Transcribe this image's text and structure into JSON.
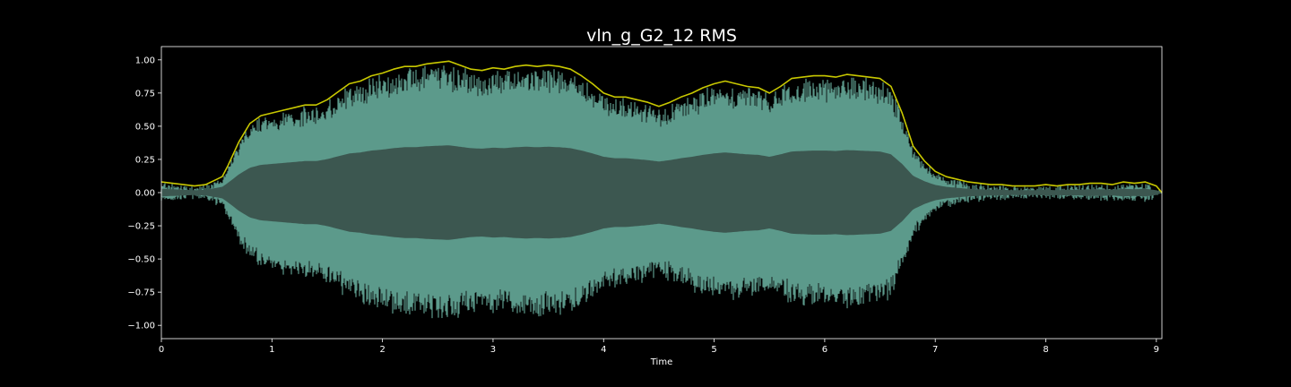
{
  "chart_data": {
    "type": "line",
    "title": "vln_g_G2_12 RMS",
    "xlabel": "Time",
    "ylabel": "",
    "xlim": [
      0,
      9.05
    ],
    "ylim": [
      -1.1,
      1.1
    ],
    "x_ticks": [
      0,
      1,
      2,
      3,
      4,
      5,
      6,
      7,
      8,
      9
    ],
    "x_tick_labels": [
      "0",
      "1",
      "2",
      "3",
      "4",
      "5",
      "6",
      "7",
      "8",
      "9"
    ],
    "y_ticks": [
      1.0,
      0.75,
      0.5,
      0.25,
      0.0,
      -0.25,
      -0.5,
      -0.75,
      -1.0
    ],
    "y_tick_labels": [
      "1.00",
      "0.75",
      "0.50",
      "0.25",
      "0.00",
      "−0.25",
      "−0.50",
      "−0.75",
      "−1.00"
    ],
    "grid": false,
    "colors": {
      "background": "#000000",
      "axes_edge": "#ffffff",
      "waveform_peak": "#5c9a8b",
      "waveform_body": "#3c5750",
      "rms_line": "#c8c800"
    },
    "series": [
      {
        "x": [
          0.0,
          0.1,
          0.2,
          0.3,
          0.4,
          0.5,
          0.55,
          0.6,
          0.7,
          0.8,
          0.9,
          1.0,
          1.1,
          1.2,
          1.3,
          1.4,
          1.5,
          1.6,
          1.7,
          1.8,
          1.9,
          2.0,
          2.1,
          2.2,
          2.3,
          2.4,
          2.5,
          2.6,
          2.7,
          2.8,
          2.9,
          3.0,
          3.1,
          3.2,
          3.3,
          3.4,
          3.5,
          3.6,
          3.7,
          3.8,
          3.9,
          4.0,
          4.1,
          4.2,
          4.3,
          4.4,
          4.5,
          4.6,
          4.7,
          4.8,
          4.9,
          5.0,
          5.1,
          5.2,
          5.3,
          5.4,
          5.5,
          5.6,
          5.7,
          5.8,
          5.9,
          6.0,
          6.1,
          6.2,
          6.3,
          6.4,
          6.5,
          6.6,
          6.7,
          6.8,
          6.9,
          7.0,
          7.1,
          7.2,
          7.3,
          7.4,
          7.5,
          7.6,
          7.7,
          7.8,
          7.9,
          8.0,
          8.1,
          8.2,
          8.3,
          8.4,
          8.5,
          8.6,
          8.7,
          8.8,
          8.9,
          9.0,
          9.05
        ],
        "y": [
          0.08,
          0.07,
          0.06,
          0.05,
          0.06,
          0.1,
          0.12,
          0.2,
          0.38,
          0.52,
          0.58,
          0.6,
          0.62,
          0.64,
          0.66,
          0.66,
          0.7,
          0.76,
          0.82,
          0.84,
          0.88,
          0.9,
          0.93,
          0.95,
          0.95,
          0.97,
          0.98,
          0.99,
          0.96,
          0.93,
          0.92,
          0.94,
          0.93,
          0.95,
          0.96,
          0.95,
          0.96,
          0.95,
          0.93,
          0.88,
          0.82,
          0.75,
          0.72,
          0.72,
          0.7,
          0.68,
          0.65,
          0.68,
          0.72,
          0.75,
          0.79,
          0.82,
          0.84,
          0.82,
          0.8,
          0.79,
          0.75,
          0.8,
          0.86,
          0.87,
          0.88,
          0.88,
          0.87,
          0.89,
          0.88,
          0.87,
          0.86,
          0.8,
          0.6,
          0.35,
          0.24,
          0.16,
          0.12,
          0.1,
          0.08,
          0.07,
          0.06,
          0.06,
          0.05,
          0.05,
          0.05,
          0.06,
          0.05,
          0.06,
          0.06,
          0.07,
          0.07,
          0.06,
          0.08,
          0.07,
          0.08,
          0.05,
          0.0
        ]
      }
    ]
  }
}
